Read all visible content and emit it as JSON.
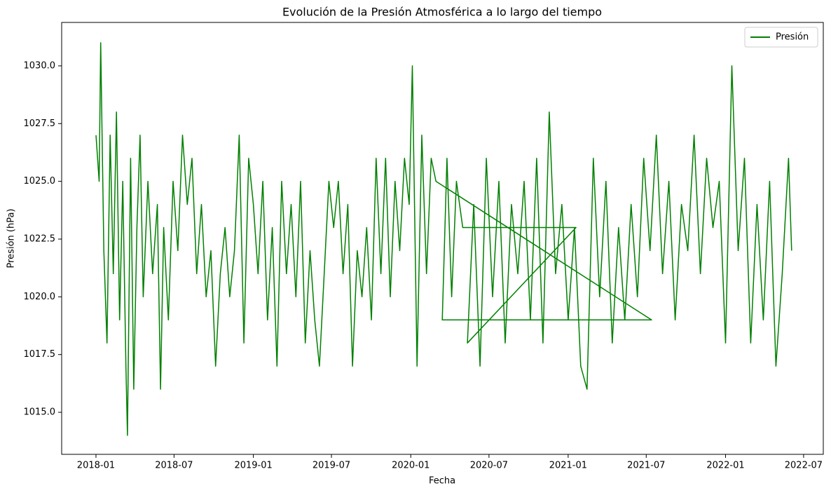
{
  "chart_data": {
    "type": "line",
    "title": "Evolución de la Presión Atmosférica a lo largo del tiempo",
    "xlabel": "Fecha",
    "ylabel": "Presión (hPa)",
    "x": [
      2018.0,
      2018.02,
      2018.03,
      2018.05,
      2018.07,
      2018.09,
      2018.11,
      2018.13,
      2018.15,
      2018.17,
      2018.19,
      2018.2,
      2018.22,
      2018.24,
      2018.26,
      2018.28,
      2018.3,
      2018.33,
      2018.36,
      2018.39,
      2018.41,
      2018.43,
      2018.46,
      2018.49,
      2018.52,
      2018.55,
      2018.58,
      2018.61,
      2018.64,
      2018.67,
      2018.7,
      2018.73,
      2018.76,
      2018.79,
      2018.82,
      2018.85,
      2018.88,
      2018.91,
      2018.94,
      2018.97,
      2019.0,
      2019.03,
      2019.06,
      2019.09,
      2019.12,
      2019.15,
      2019.18,
      2019.21,
      2019.24,
      2019.27,
      2019.3,
      2019.33,
      2019.36,
      2019.39,
      2019.42,
      2019.45,
      2019.48,
      2019.51,
      2019.54,
      2019.57,
      2019.6,
      2019.63,
      2019.66,
      2019.69,
      2019.72,
      2019.75,
      2019.78,
      2019.81,
      2019.84,
      2019.87,
      2019.9,
      2019.93,
      2019.96,
      2019.99,
      2020.01,
      2020.04,
      2020.07,
      2020.1,
      2020.13,
      2020.16,
      2021.53,
      2020.2,
      2020.23,
      2020.26,
      2020.29,
      2020.33,
      2021.05,
      2020.36,
      2020.4,
      2020.44,
      2020.48,
      2020.52,
      2020.56,
      2020.6,
      2020.64,
      2020.68,
      2020.72,
      2020.76,
      2020.8,
      2020.84,
      2020.88,
      2020.92,
      2020.96,
      2021.0,
      2021.04,
      2021.08,
      2021.12,
      2021.16,
      2021.2,
      2021.24,
      2021.28,
      2021.32,
      2021.36,
      2021.4,
      2021.44,
      2021.48,
      2021.52,
      2021.56,
      2021.6,
      2021.64,
      2021.68,
      2021.72,
      2021.76,
      2021.8,
      2021.84,
      2021.88,
      2021.92,
      2021.96,
      2022.0,
      2022.04,
      2022.08,
      2022.12,
      2022.16,
      2022.2,
      2022.24,
      2022.28,
      2022.32,
      2022.36,
      2022.4,
      2022.42
    ],
    "series": [
      {
        "name": "Presión",
        "color": "#008000",
        "values": [
          1027,
          1025,
          1031,
          1022,
          1018,
          1027,
          1021,
          1028,
          1019,
          1025,
          1017,
          1014,
          1026,
          1016,
          1023,
          1027,
          1020,
          1025,
          1021,
          1024,
          1016,
          1023,
          1019,
          1025,
          1022,
          1027,
          1024,
          1026,
          1021,
          1024,
          1020,
          1022,
          1017,
          1021,
          1023,
          1020,
          1022,
          1027,
          1018,
          1026,
          1024,
          1021,
          1025,
          1019,
          1023,
          1017,
          1025,
          1021,
          1024,
          1020,
          1025,
          1018,
          1022,
          1019,
          1017,
          1021,
          1025,
          1023,
          1025,
          1021,
          1024,
          1017,
          1022,
          1020,
          1023,
          1019,
          1026,
          1021,
          1026,
          1020,
          1025,
          1022,
          1026,
          1024,
          1030,
          1017,
          1027,
          1021,
          1026,
          1025,
          1019,
          1019,
          1026,
          1020,
          1025,
          1023,
          1023,
          1018,
          1024,
          1017,
          1026,
          1020,
          1025,
          1018,
          1024,
          1021,
          1025,
          1019,
          1026,
          1018,
          1028,
          1021,
          1024,
          1019,
          1023,
          1017,
          1016,
          1026,
          1020,
          1025,
          1018,
          1023,
          1019,
          1024,
          1020,
          1026,
          1022,
          1027,
          1021,
          1025,
          1019,
          1024,
          1022,
          1027,
          1021,
          1026,
          1023,
          1025,
          1018,
          1030,
          1022,
          1026,
          1018,
          1024,
          1019,
          1025,
          1017,
          1021,
          1026,
          1022
        ]
      }
    ],
    "xlim": [
      2017.782,
      2022.621
    ],
    "xticks": [
      {
        "value": 2018.0,
        "label": "2018-01"
      },
      {
        "value": 2018.496,
        "label": "2018-07"
      },
      {
        "value": 2019.0,
        "label": "2019-01"
      },
      {
        "value": 2019.496,
        "label": "2019-07"
      },
      {
        "value": 2020.0,
        "label": "2020-01"
      },
      {
        "value": 2020.497,
        "label": "2020-07"
      },
      {
        "value": 2021.0,
        "label": "2021-01"
      },
      {
        "value": 2021.496,
        "label": "2021-07"
      },
      {
        "value": 2022.0,
        "label": "2022-01"
      },
      {
        "value": 2022.496,
        "label": "2022-07"
      }
    ],
    "ylim": [
      1013.18,
      1031.88
    ],
    "yticks": [
      {
        "value": 1015,
        "label": "1015.0"
      },
      {
        "value": 1017.5,
        "label": "1017.5"
      },
      {
        "value": 1020,
        "label": "1020.0"
      },
      {
        "value": 1022.5,
        "label": "1022.5"
      },
      {
        "value": 1025,
        "label": "1025.0"
      },
      {
        "value": 1027.5,
        "label": "1027.5"
      },
      {
        "value": 1030,
        "label": "1030.0"
      }
    ],
    "legend": "upper right",
    "grid": false
  }
}
